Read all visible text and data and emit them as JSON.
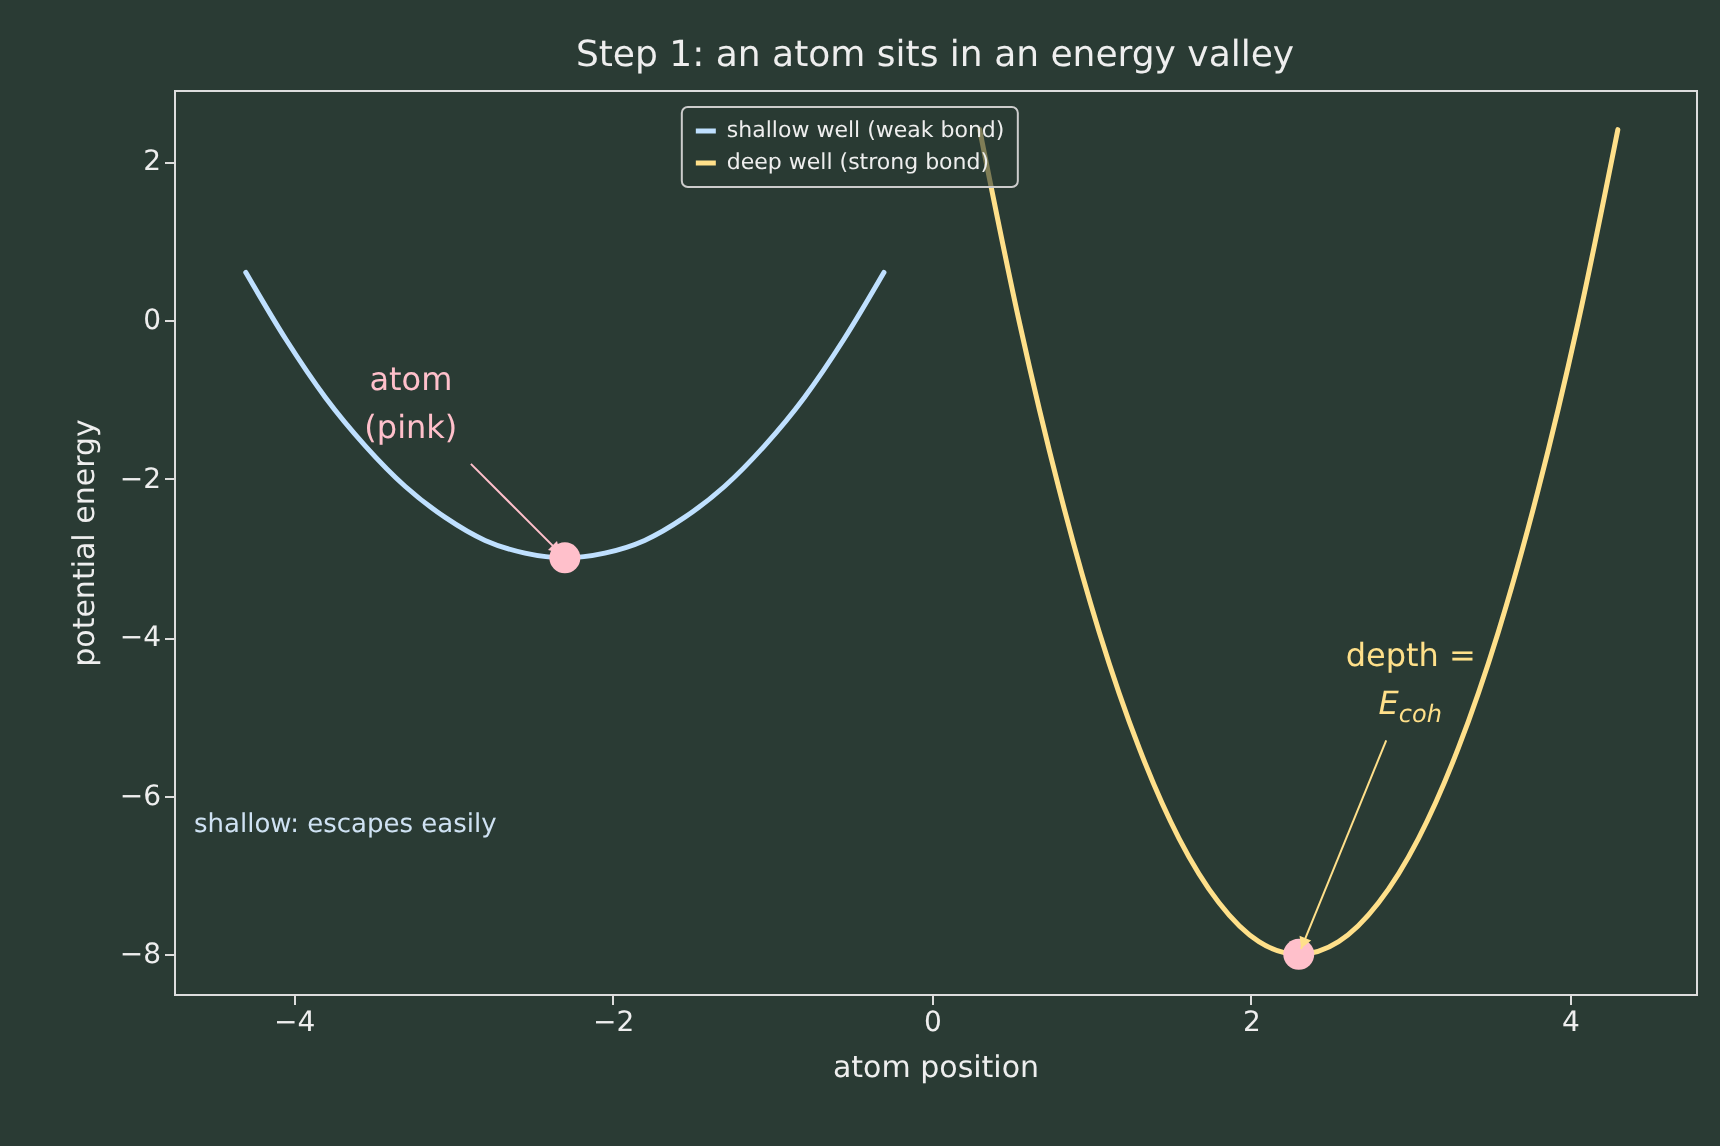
{
  "chart_data": {
    "type": "line",
    "title": "Step 1: an atom sits in an energy valley",
    "xlabel": "atom position",
    "ylabel": "potential energy",
    "xlim": [
      -4.75,
      4.79
    ],
    "ylim": [
      -8.5,
      2.9
    ],
    "xticks": [
      -4,
      -2,
      0,
      2,
      4
    ],
    "yticks": [
      -8,
      -6,
      -4,
      -2,
      0,
      2
    ],
    "legend": "top",
    "series": [
      {
        "name": "shallow well (weak bond)",
        "color": "#bfe0ff",
        "x": [
          -4.3,
          -4.05,
          -3.8,
          -3.55,
          -3.3,
          -3.05,
          -2.8,
          -2.55,
          -2.3,
          -2.05,
          -1.8,
          -1.55,
          -1.3,
          -1.05,
          -0.8,
          -0.55,
          -0.3
        ],
        "values": [
          0.6,
          -0.24,
          -0.98,
          -1.59,
          -2.1,
          -2.49,
          -2.78,
          -2.94,
          -3,
          -2.94,
          -2.78,
          -2.49,
          -2.1,
          -1.59,
          -0.98,
          -0.24,
          0.6
        ]
      },
      {
        "name": "deep well (strong bond)",
        "color": "#ffe08a",
        "x": [
          0.3,
          0.55,
          0.8,
          1.05,
          1.3,
          1.55,
          1.8,
          2.05,
          2.3,
          2.55,
          2.8,
          3.05,
          3.3,
          3.55,
          3.8,
          4.05,
          4.3
        ],
        "values": [
          2.4,
          -0.04,
          -2.15,
          -3.94,
          -5.4,
          -6.54,
          -7.35,
          -7.84,
          -8,
          -7.84,
          -7.35,
          -6.54,
          -5.4,
          -3.94,
          -2.15,
          -0.04,
          2.4
        ]
      },
      {
        "type": "scatter",
        "marker": "circle",
        "color": "#ffc0cb",
        "x": [
          -2.3,
          2.3
        ],
        "values": [
          -3,
          -8
        ]
      }
    ],
    "annotations": [
      {
        "text": "atom\n(pink)",
        "x": -2.3,
        "y": -3
      },
      {
        "text": "depth =\nE$_{coh}$",
        "x": 2.3,
        "y": -8
      },
      "shallow: escapes easily"
    ]
  }
}
